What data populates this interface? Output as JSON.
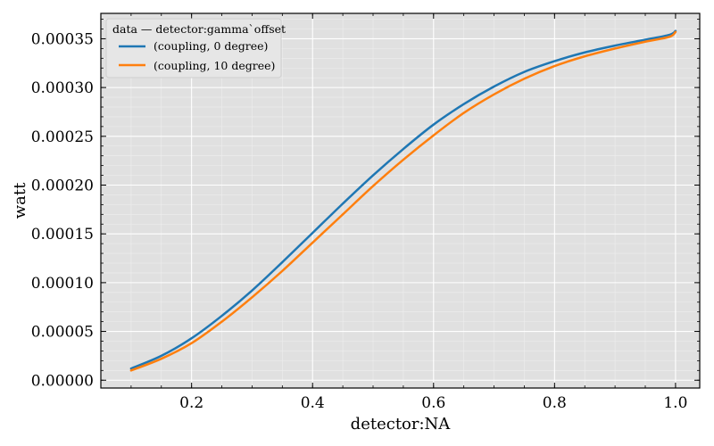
{
  "chart_data": {
    "type": "line",
    "xlabel": "detector:NA",
    "ylabel": "watt",
    "xlim": [
      0.05,
      1.04
    ],
    "ylim": [
      -8e-06,
      0.000376
    ],
    "xticks": [
      0.2,
      0.4,
      0.6,
      0.8,
      1.0
    ],
    "xtick_labels": [
      "0.2",
      "0.4",
      "0.6",
      "0.8",
      "1.0"
    ],
    "yticks": [
      0.0,
      5e-05,
      0.0001,
      0.00015,
      0.0002,
      0.00025,
      0.0003,
      0.00035
    ],
    "ytick_labels": [
      "0.00000",
      "0.00005",
      "0.00010",
      "0.00015",
      "0.00020",
      "0.00025",
      "0.00030",
      "0.00035"
    ],
    "grid": true,
    "legend": {
      "title": "data — detector:gamma`offset",
      "placement": "top-left"
    },
    "series": [
      {
        "name": "(coupling, 0 degree)",
        "color": "#1f77b4",
        "x": [
          0.1,
          0.15,
          0.2,
          0.25,
          0.3,
          0.35,
          0.4,
          0.45,
          0.5,
          0.55,
          0.6,
          0.65,
          0.7,
          0.75,
          0.8,
          0.85,
          0.9,
          0.95,
          0.99,
          1.0
        ],
        "y": [
          1.2e-05,
          2.5e-05,
          4.3e-05,
          6.6e-05,
          9.2e-05,
          0.000121,
          0.000151,
          0.000181,
          0.00021,
          0.000237,
          0.000262,
          0.000283,
          0.000301,
          0.000316,
          0.000327,
          0.000336,
          0.000343,
          0.000349,
          0.000354,
          0.000358
        ]
      },
      {
        "name": "(coupling, 10 degree)",
        "color": "#ff7f0e",
        "x": [
          0.1,
          0.15,
          0.2,
          0.25,
          0.3,
          0.35,
          0.4,
          0.45,
          0.5,
          0.55,
          0.6,
          0.65,
          0.7,
          0.75,
          0.8,
          0.85,
          0.9,
          0.95,
          0.99,
          1.0
        ],
        "y": [
          1e-05,
          2.2e-05,
          3.8e-05,
          6e-05,
          8.5e-05,
          0.000112,
          0.000141,
          0.00017,
          0.000199,
          0.000226,
          0.000251,
          0.000274,
          0.000293,
          0.000309,
          0.000322,
          0.000332,
          0.00034,
          0.000347,
          0.000352,
          0.000357
        ]
      }
    ]
  }
}
